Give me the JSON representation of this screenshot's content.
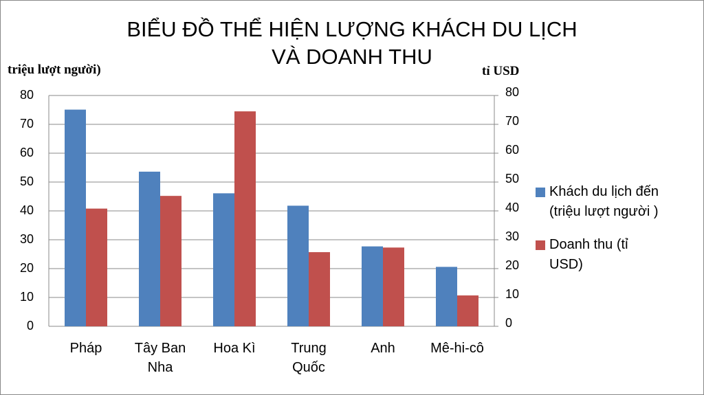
{
  "chart_data": {
    "type": "bar",
    "title": [
      "BIỂU ĐỒ THỂ HIỆN LƯỢNG KHÁCH DU LỊCH",
      "VÀ DOANH THU"
    ],
    "y_label": "triệu lượt người)",
    "y2_label": "tỉ USD",
    "categories": [
      "Pháp",
      "Tây Ban Nha",
      "Hoa Kì",
      "Trung Quốc",
      "Anh",
      "Mê-hi-cô"
    ],
    "series": [
      {
        "name": "Khách du lịch đến (triệu lượt người )",
        "color": "#4f81bd",
        "values": [
          75.1,
          53.6,
          46.1,
          41.8,
          27.7,
          20.6
        ]
      },
      {
        "name": "Doanh thu (tỉ USD)",
        "color": "#c0504d",
        "axis": "y2",
        "values": [
          40.8,
          45.2,
          74.5,
          25.7,
          27.3,
          10.7
        ]
      }
    ],
    "ylim": [
      0,
      80
    ],
    "yticks": [
      0,
      10,
      20,
      30,
      40,
      50,
      60,
      70,
      80
    ],
    "y2lim": [
      0,
      80
    ],
    "y2ticks": [
      0,
      10,
      20,
      30,
      40,
      50,
      60,
      70,
      80
    ],
    "grid": true,
    "legend": "right"
  }
}
